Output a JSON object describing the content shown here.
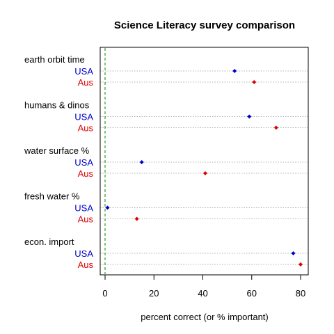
{
  "chart_data": {
    "type": "scatter",
    "title": "Science Literacy survey comparison",
    "xlabel": "percent correct (or % important)",
    "ylabel": "",
    "xlim": [
      -2,
      82
    ],
    "xticks": [
      0,
      20,
      40,
      60,
      80
    ],
    "reference_line_x": 0,
    "grid": "dotted horizontal lines per row",
    "series": [
      {
        "name": "USA",
        "color": "#0000cc"
      },
      {
        "name": "Aus",
        "color": "#dd0000"
      }
    ],
    "groups": [
      {
        "label": "earth orbit time",
        "values": {
          "USA": 53,
          "Aus": 61
        }
      },
      {
        "label": "humans & dinos",
        "values": {
          "USA": 59,
          "Aus": 70
        }
      },
      {
        "label": "water surface %",
        "values": {
          "USA": 15,
          "Aus": 41
        }
      },
      {
        "label": "fresh water %",
        "values": {
          "USA": 1,
          "Aus": 13
        }
      },
      {
        "label": "econ. import",
        "values": {
          "USA": 77,
          "Aus": 80
        }
      }
    ]
  }
}
